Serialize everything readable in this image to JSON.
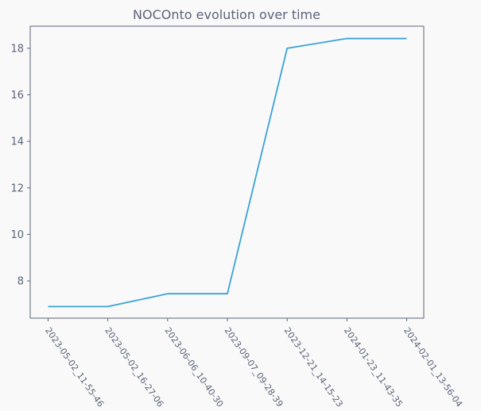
{
  "chart_data": {
    "type": "line",
    "title": "NOCOnto evolution over time",
    "xlabel": "",
    "ylabel": "",
    "categories": [
      "2023-05-02_11-55-46",
      "2023-05-02_16-27-06",
      "2023-06-06_10-40-30",
      "2023-09-07_09-28-39",
      "2023-12-21_14-15-23",
      "2024-01-23_11-43-35",
      "2024-02-01_13-56-04"
    ],
    "series": [
      {
        "values": [
          6.9,
          6.9,
          7.45,
          7.45,
          18.0,
          18.42,
          18.42
        ],
        "color": "#3aa3d6"
      }
    ],
    "ylim": [
      6.4,
      18.95
    ],
    "yticks": [
      8,
      10,
      12,
      14,
      16,
      18
    ],
    "grid": false,
    "legend": "none"
  }
}
